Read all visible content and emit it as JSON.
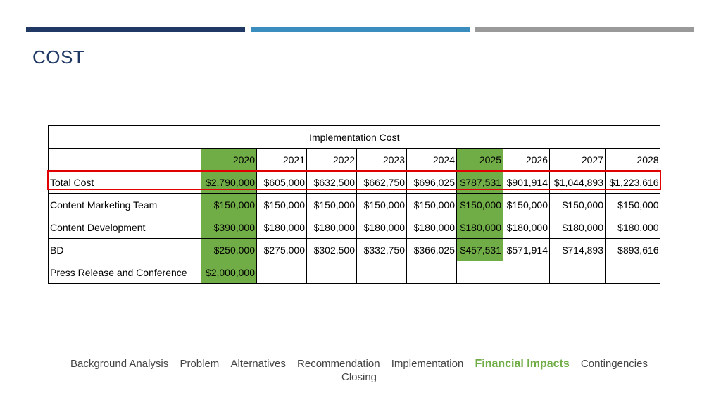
{
  "slide": {
    "title": "COST"
  },
  "table": {
    "caption": "Implementation Cost",
    "years": [
      "2020",
      "2021",
      "2022",
      "2023",
      "2024",
      "2025",
      "2026",
      "2027",
      "2028"
    ],
    "rows": [
      {
        "label": "Total Cost",
        "values": [
          "$2,790,000",
          "$605,000",
          "$632,500",
          "$662,750",
          "$696,025",
          "$787,531",
          "$901,914",
          "$1,044,893",
          "$1,223,616"
        ]
      },
      {
        "label": "Content Marketing Team",
        "values": [
          "$150,000",
          "$150,000",
          "$150,000",
          "$150,000",
          "$150,000",
          "$150,000",
          "$150,000",
          "$150,000",
          "$150,000"
        ]
      },
      {
        "label": "Content Development",
        "values": [
          "$390,000",
          "$180,000",
          "$180,000",
          "$180,000",
          "$180,000",
          "$180,000",
          "$180,000",
          "$180,000",
          "$180,000"
        ]
      },
      {
        "label": "BD",
        "values": [
          "$250,000",
          "$275,000",
          "$302,500",
          "$332,750",
          "$366,025",
          "$457,531",
          "$571,914",
          "$714,893",
          "$893,616"
        ]
      },
      {
        "label": "Press Release and Conference",
        "values": [
          "$2,000,000",
          "",
          "",
          "",
          "",
          "",
          "",
          "",
          ""
        ]
      }
    ],
    "highlight_color": "#70ad47"
  },
  "nav": {
    "items": [
      "Background Analysis",
      "Problem",
      "Alternatives",
      "Recommendation",
      "Implementation",
      "Financial Impacts",
      "Contingencies",
      "Closing"
    ],
    "active": "Financial Impacts",
    "active_color": "#70ad47"
  },
  "colors": {
    "bar1": "#1f3864",
    "bar2": "#3a8dbd",
    "bar3": "#9a9a9a",
    "title": "#1f3864",
    "outline": "#e00000"
  }
}
